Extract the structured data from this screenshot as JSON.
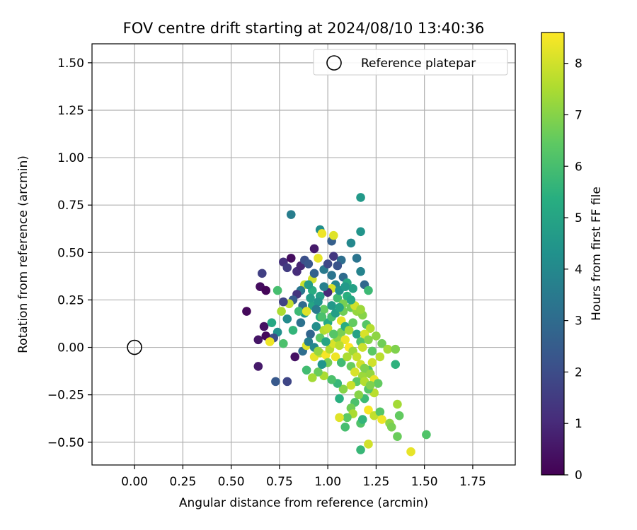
{
  "chart_data": {
    "type": "scatter",
    "title": "FOV centre drift starting at 2024/08/10 13:40:36",
    "xlabel": "Angular distance from reference (arcmin)",
    "ylabel": "Rotation from reference (arcmin)",
    "xlim": [
      -0.22,
      1.97
    ],
    "ylim": [
      -0.62,
      1.6
    ],
    "xticks": [
      0.0,
      0.25,
      0.5,
      0.75,
      1.0,
      1.25,
      1.5,
      1.75
    ],
    "xtick_labels": [
      "0.00",
      "0.25",
      "0.50",
      "0.75",
      "1.00",
      "1.25",
      "1.50",
      "1.75"
    ],
    "yticks": [
      -0.5,
      -0.25,
      0.0,
      0.25,
      0.5,
      0.75,
      1.0,
      1.25,
      1.5
    ],
    "ytick_labels": [
      "−0.50",
      "−0.25",
      "0.00",
      "0.25",
      "0.50",
      "0.75",
      "1.00",
      "1.25",
      "1.50"
    ],
    "grid": true,
    "legend": {
      "position": "top-right",
      "entries": [
        {
          "label": "Reference platepar",
          "marker": "open-circle"
        }
      ]
    },
    "reference_point": {
      "x": 0.0,
      "y": 0.0
    },
    "colorbar": {
      "label": "Hours from first FF file",
      "colormap": "viridis",
      "range": [
        0,
        8.6
      ],
      "ticks": [
        0,
        1,
        2,
        3,
        4,
        5,
        6,
        7,
        8
      ],
      "tick_labels": [
        "0",
        "1",
        "2",
        "3",
        "4",
        "5",
        "6",
        "7",
        "8"
      ]
    },
    "points": [
      {
        "x": 0.58,
        "y": 0.19,
        "c": 0.2
      },
      {
        "x": 0.65,
        "y": 0.32,
        "c": 0.3
      },
      {
        "x": 0.66,
        "y": 0.39,
        "c": 1.6
      },
      {
        "x": 0.68,
        "y": 0.3,
        "c": 0.1
      },
      {
        "x": 0.67,
        "y": 0.11,
        "c": 0.4
      },
      {
        "x": 0.64,
        "y": 0.04,
        "c": 0.5
      },
      {
        "x": 0.68,
        "y": 0.06,
        "c": 0.2
      },
      {
        "x": 0.64,
        "y": -0.1,
        "c": 0.6
      },
      {
        "x": 0.73,
        "y": -0.18,
        "c": 2.4
      },
      {
        "x": 0.79,
        "y": -0.18,
        "c": 1.8
      },
      {
        "x": 0.83,
        "y": -0.05,
        "c": 0.4
      },
      {
        "x": 0.81,
        "y": 0.7,
        "c": 3.6
      },
      {
        "x": 0.77,
        "y": 0.45,
        "c": 1.2
      },
      {
        "x": 0.81,
        "y": 0.47,
        "c": 0.3
      },
      {
        "x": 0.79,
        "y": 0.42,
        "c": 1.5
      },
      {
        "x": 0.84,
        "y": 0.4,
        "c": 1.1
      },
      {
        "x": 0.86,
        "y": 0.43,
        "c": 0.9
      },
      {
        "x": 0.88,
        "y": 0.46,
        "c": 2.1
      },
      {
        "x": 0.93,
        "y": 0.52,
        "c": 0.6
      },
      {
        "x": 0.96,
        "y": 0.62,
        "c": 4.2
      },
      {
        "x": 1.02,
        "y": 0.56,
        "c": 2.6
      },
      {
        "x": 1.03,
        "y": 0.48,
        "c": 1.4
      },
      {
        "x": 1.07,
        "y": 0.46,
        "c": 3.1
      },
      {
        "x": 1.12,
        "y": 0.55,
        "c": 4.0
      },
      {
        "x": 1.17,
        "y": 0.61,
        "c": 4.4
      },
      {
        "x": 1.17,
        "y": 0.79,
        "c": 4.6
      },
      {
        "x": 1.15,
        "y": 0.47,
        "c": 3.3
      },
      {
        "x": 1.17,
        "y": 0.4,
        "c": 3.8
      },
      {
        "x": 1.19,
        "y": 0.33,
        "c": 2.9
      },
      {
        "x": 1.21,
        "y": 0.3,
        "c": 5.8
      },
      {
        "x": 0.97,
        "y": 0.6,
        "c": 8.4
      },
      {
        "x": 1.03,
        "y": 0.59,
        "c": 8.2
      },
      {
        "x": 0.95,
        "y": 0.47,
        "c": 8.3
      },
      {
        "x": 0.9,
        "y": 0.44,
        "c": 2.3
      },
      {
        "x": 0.92,
        "y": 0.36,
        "c": 8.0
      },
      {
        "x": 0.88,
        "y": 0.33,
        "c": 7.9
      },
      {
        "x": 0.93,
        "y": 0.39,
        "c": 2.7
      },
      {
        "x": 0.98,
        "y": 0.41,
        "c": 3.5
      },
      {
        "x": 1.0,
        "y": 0.44,
        "c": 1.9
      },
      {
        "x": 1.05,
        "y": 0.43,
        "c": 2.2
      },
      {
        "x": 1.08,
        "y": 0.37,
        "c": 3.0
      },
      {
        "x": 1.1,
        "y": 0.34,
        "c": 5.2
      },
      {
        "x": 1.13,
        "y": 0.31,
        "c": 4.9
      },
      {
        "x": 1.04,
        "y": 0.33,
        "c": 3.9
      },
      {
        "x": 1.02,
        "y": 0.31,
        "c": 8.1
      },
      {
        "x": 1.0,
        "y": 0.29,
        "c": 1.0
      },
      {
        "x": 0.96,
        "y": 0.27,
        "c": 4.8
      },
      {
        "x": 0.92,
        "y": 0.3,
        "c": 5.3
      },
      {
        "x": 0.9,
        "y": 0.33,
        "c": 4.7
      },
      {
        "x": 0.86,
        "y": 0.3,
        "c": 3.4
      },
      {
        "x": 0.84,
        "y": 0.28,
        "c": 1.3
      },
      {
        "x": 0.82,
        "y": 0.25,
        "c": 2.5
      },
      {
        "x": 0.8,
        "y": 0.23,
        "c": 7.8
      },
      {
        "x": 0.77,
        "y": 0.24,
        "c": 1.7
      },
      {
        "x": 0.76,
        "y": 0.19,
        "c": 7.5
      },
      {
        "x": 0.79,
        "y": 0.15,
        "c": 4.1
      },
      {
        "x": 0.74,
        "y": 0.3,
        "c": 6.0
      },
      {
        "x": 0.71,
        "y": 0.13,
        "c": 5.1
      },
      {
        "x": 0.74,
        "y": 0.08,
        "c": 4.3
      },
      {
        "x": 0.72,
        "y": 0.05,
        "c": 2.0
      },
      {
        "x": 0.7,
        "y": 0.03,
        "c": 8.4
      },
      {
        "x": 0.77,
        "y": 0.02,
        "c": 6.1
      },
      {
        "x": 0.82,
        "y": 0.09,
        "c": 5.6
      },
      {
        "x": 0.86,
        "y": 0.13,
        "c": 3.2
      },
      {
        "x": 0.88,
        "y": 0.18,
        "c": 4.5
      },
      {
        "x": 0.92,
        "y": 0.22,
        "c": 5.0
      },
      {
        "x": 0.95,
        "y": 0.24,
        "c": 4.4
      },
      {
        "x": 0.98,
        "y": 0.2,
        "c": 6.5
      },
      {
        "x": 1.02,
        "y": 0.22,
        "c": 4.6
      },
      {
        "x": 1.05,
        "y": 0.26,
        "c": 5.9
      },
      {
        "x": 1.08,
        "y": 0.23,
        "c": 6.8
      },
      {
        "x": 1.1,
        "y": 0.27,
        "c": 5.4
      },
      {
        "x": 1.12,
        "y": 0.21,
        "c": 6.6
      },
      {
        "x": 1.15,
        "y": 0.19,
        "c": 7.2
      },
      {
        "x": 1.18,
        "y": 0.17,
        "c": 7.0
      },
      {
        "x": 1.2,
        "y": 0.12,
        "c": 6.3
      },
      {
        "x": 1.22,
        "y": 0.1,
        "c": 7.6
      },
      {
        "x": 1.25,
        "y": 0.06,
        "c": 7.1
      },
      {
        "x": 1.28,
        "y": 0.02,
        "c": 6.7
      },
      {
        "x": 1.31,
        "y": -0.01,
        "c": 7.4
      },
      {
        "x": 1.35,
        "y": -0.01,
        "c": 6.9
      },
      {
        "x": 1.35,
        "y": -0.09,
        "c": 5.5
      },
      {
        "x": 1.27,
        "y": -0.05,
        "c": 7.7
      },
      {
        "x": 1.23,
        "y": -0.08,
        "c": 8.0
      },
      {
        "x": 1.21,
        "y": -0.12,
        "c": 6.2
      },
      {
        "x": 1.18,
        "y": -0.15,
        "c": 7.3
      },
      {
        "x": 1.15,
        "y": -0.18,
        "c": 6.4
      },
      {
        "x": 1.12,
        "y": -0.2,
        "c": 7.9
      },
      {
        "x": 1.08,
        "y": -0.22,
        "c": 7.0
      },
      {
        "x": 1.05,
        "y": -0.19,
        "c": 5.7
      },
      {
        "x": 1.02,
        "y": -0.17,
        "c": 6.1
      },
      {
        "x": 0.98,
        "y": -0.15,
        "c": 7.5
      },
      {
        "x": 0.95,
        "y": -0.13,
        "c": 6.6
      },
      {
        "x": 0.92,
        "y": -0.16,
        "c": 7.4
      },
      {
        "x": 0.89,
        "y": -0.12,
        "c": 5.9
      },
      {
        "x": 0.87,
        "y": -0.02,
        "c": 3.1
      },
      {
        "x": 0.89,
        "y": 0.01,
        "c": 8.2
      },
      {
        "x": 0.93,
        "y": -0.05,
        "c": 8.3
      },
      {
        "x": 0.96,
        "y": -0.03,
        "c": 7.8
      },
      {
        "x": 0.99,
        "y": -0.04,
        "c": 8.5
      },
      {
        "x": 1.01,
        "y": -0.01,
        "c": 7.6
      },
      {
        "x": 1.03,
        "y": 0.02,
        "c": 8.1
      },
      {
        "x": 1.05,
        "y": 0.05,
        "c": 7.1
      },
      {
        "x": 1.07,
        "y": 0.08,
        "c": 6.8
      },
      {
        "x": 1.09,
        "y": 0.04,
        "c": 8.4
      },
      {
        "x": 1.11,
        "y": 0.0,
        "c": 8.6
      },
      {
        "x": 1.13,
        "y": -0.02,
        "c": 7.3
      },
      {
        "x": 1.15,
        "y": -0.05,
        "c": 7.9
      },
      {
        "x": 1.17,
        "y": -0.09,
        "c": 8.0
      },
      {
        "x": 1.19,
        "y": -0.11,
        "c": 6.9
      },
      {
        "x": 1.22,
        "y": -0.14,
        "c": 7.2
      },
      {
        "x": 1.24,
        "y": -0.17,
        "c": 8.3
      },
      {
        "x": 1.26,
        "y": -0.19,
        "c": 6.5
      },
      {
        "x": 1.24,
        "y": -0.24,
        "c": 7.7
      },
      {
        "x": 1.21,
        "y": -0.22,
        "c": 6.3
      },
      {
        "x": 1.19,
        "y": -0.27,
        "c": 5.8
      },
      {
        "x": 1.16,
        "y": -0.25,
        "c": 7.0
      },
      {
        "x": 1.14,
        "y": -0.29,
        "c": 6.1
      },
      {
        "x": 1.12,
        "y": -0.32,
        "c": 6.7
      },
      {
        "x": 1.13,
        "y": -0.35,
        "c": 7.5
      },
      {
        "x": 1.1,
        "y": -0.37,
        "c": 6.4
      },
      {
        "x": 1.06,
        "y": -0.37,
        "c": 8.2
      },
      {
        "x": 1.09,
        "y": -0.42,
        "c": 6.0
      },
      {
        "x": 1.17,
        "y": -0.4,
        "c": 6.2
      },
      {
        "x": 1.18,
        "y": -0.38,
        "c": 5.6
      },
      {
        "x": 1.21,
        "y": -0.33,
        "c": 8.5
      },
      {
        "x": 1.24,
        "y": -0.36,
        "c": 7.8
      },
      {
        "x": 1.27,
        "y": -0.34,
        "c": 6.3
      },
      {
        "x": 1.28,
        "y": -0.38,
        "c": 8.4
      },
      {
        "x": 1.32,
        "y": -0.4,
        "c": 7.1
      },
      {
        "x": 1.33,
        "y": -0.42,
        "c": 6.8
      },
      {
        "x": 1.36,
        "y": -0.47,
        "c": 6.6
      },
      {
        "x": 1.37,
        "y": -0.36,
        "c": 6.5
      },
      {
        "x": 1.36,
        "y": -0.3,
        "c": 7.4
      },
      {
        "x": 1.43,
        "y": -0.55,
        "c": 8.3
      },
      {
        "x": 1.51,
        "y": -0.46,
        "c": 6.2
      },
      {
        "x": 1.21,
        "y": -0.51,
        "c": 8.0
      },
      {
        "x": 1.17,
        "y": -0.54,
        "c": 5.7
      },
      {
        "x": 1.06,
        "y": -0.27,
        "c": 5.4
      },
      {
        "x": 0.98,
        "y": 0.09,
        "c": 7.6
      },
      {
        "x": 1.0,
        "y": 0.13,
        "c": 5.2
      },
      {
        "x": 1.02,
        "y": 0.16,
        "c": 6.0
      },
      {
        "x": 1.04,
        "y": 0.18,
        "c": 4.8
      },
      {
        "x": 1.07,
        "y": 0.14,
        "c": 8.3
      },
      {
        "x": 1.09,
        "y": 0.11,
        "c": 5.3
      },
      {
        "x": 1.11,
        "y": 0.09,
        "c": 7.4
      },
      {
        "x": 1.13,
        "y": 0.13,
        "c": 6.5
      },
      {
        "x": 1.15,
        "y": 0.07,
        "c": 4.9
      },
      {
        "x": 1.17,
        "y": 0.03,
        "c": 6.2
      },
      {
        "x": 1.19,
        "y": 0.07,
        "c": 8.1
      },
      {
        "x": 1.21,
        "y": 0.04,
        "c": 7.0
      },
      {
        "x": 1.14,
        "y": 0.22,
        "c": 8.0
      },
      {
        "x": 1.17,
        "y": 0.2,
        "c": 7.3
      },
      {
        "x": 0.94,
        "y": 0.11,
        "c": 4.2
      },
      {
        "x": 0.91,
        "y": 0.07,
        "c": 2.8
      },
      {
        "x": 0.9,
        "y": 0.03,
        "c": 3.6
      },
      {
        "x": 0.93,
        "y": 0.0,
        "c": 4.0
      },
      {
        "x": 0.96,
        "y": 0.05,
        "c": 6.4
      },
      {
        "x": 0.99,
        "y": 0.03,
        "c": 5.0
      },
      {
        "x": 0.96,
        "y": 0.16,
        "c": 5.5
      },
      {
        "x": 0.98,
        "y": 0.32,
        "c": 3.7
      },
      {
        "x": 1.02,
        "y": 0.38,
        "c": 3.3
      },
      {
        "x": 1.06,
        "y": 0.3,
        "c": 4.3
      },
      {
        "x": 1.09,
        "y": 0.32,
        "c": 4.6
      },
      {
        "x": 1.12,
        "y": 0.25,
        "c": 5.1
      },
      {
        "x": 0.87,
        "y": 0.22,
        "c": 3.0
      },
      {
        "x": 0.85,
        "y": 0.19,
        "c": 5.8
      },
      {
        "x": 0.89,
        "y": 0.19,
        "c": 8.2
      },
      {
        "x": 0.91,
        "y": 0.26,
        "c": 4.7
      },
      {
        "x": 0.94,
        "y": 0.2,
        "c": 3.5
      },
      {
        "x": 0.97,
        "y": 0.16,
        "c": 6.1
      },
      {
        "x": 1.0,
        "y": 0.1,
        "c": 7.8
      },
      {
        "x": 1.03,
        "y": 0.07,
        "c": 6.3
      },
      {
        "x": 1.06,
        "y": 0.01,
        "c": 7.7
      },
      {
        "x": 1.04,
        "y": -0.05,
        "c": 8.4
      },
      {
        "x": 1.07,
        "y": -0.08,
        "c": 5.9
      },
      {
        "x": 1.1,
        "y": -0.05,
        "c": 7.5
      },
      {
        "x": 1.12,
        "y": -0.1,
        "c": 6.6
      },
      {
        "x": 1.14,
        "y": -0.13,
        "c": 8.1
      },
      {
        "x": 1.0,
        "y": -0.08,
        "c": 6.8
      },
      {
        "x": 0.97,
        "y": -0.09,
        "c": 4.5
      },
      {
        "x": 0.95,
        "y": -0.02,
        "c": 7.2
      },
      {
        "x": 1.19,
        "y": -0.18,
        "c": 7.6
      },
      {
        "x": 1.22,
        "y": -0.2,
        "c": 6.9
      },
      {
        "x": 1.23,
        "y": -0.02,
        "c": 6.4
      },
      {
        "x": 1.18,
        "y": 0.0,
        "c": 7.9
      },
      {
        "x": 1.08,
        "y": 0.19,
        "c": 6.7
      },
      {
        "x": 1.06,
        "y": 0.21,
        "c": 5.0
      }
    ]
  }
}
